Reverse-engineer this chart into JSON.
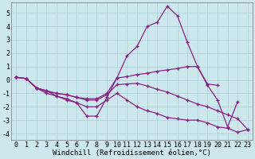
{
  "background_color": "#cde8ec",
  "grid_color": "#aad0d8",
  "line_color": "#882288",
  "marker": "+",
  "xlabel": "Windchill (Refroidissement éolien,°C)",
  "xlabel_fontsize": 6.5,
  "tick_fontsize": 6,
  "xlim": [
    -0.5,
    23.5
  ],
  "ylim": [
    -4.5,
    5.8
  ],
  "yticks": [
    -4,
    -3,
    -2,
    -1,
    0,
    1,
    2,
    3,
    4,
    5
  ],
  "xticks": [
    0,
    1,
    2,
    3,
    4,
    5,
    6,
    7,
    8,
    9,
    10,
    11,
    12,
    13,
    14,
    15,
    16,
    17,
    18,
    19,
    20,
    21,
    22,
    23
  ],
  "series": [
    [
      0.2,
      0.1,
      -0.6,
      -0.8,
      -1.2,
      -1.4,
      -1.7,
      -2.7,
      -2.7,
      -1.3,
      0.15,
      1.8,
      2.5,
      4.0,
      4.3,
      5.5,
      4.8,
      2.8,
      1.0,
      -0.4,
      -1.5,
      -3.5,
      -1.6,
      null
    ],
    [
      0.2,
      0.1,
      -0.6,
      -0.8,
      -1.0,
      -1.1,
      -1.3,
      -1.4,
      -1.4,
      -1.0,
      0.15,
      0.25,
      0.4,
      0.5,
      0.65,
      0.75,
      0.85,
      1.0,
      1.0,
      -0.3,
      -0.4,
      null,
      null,
      null
    ],
    [
      0.2,
      0.1,
      -0.6,
      -0.85,
      -1.0,
      -1.1,
      -1.3,
      -1.5,
      -1.5,
      -1.1,
      -0.35,
      -0.3,
      -0.25,
      -0.45,
      -0.7,
      -0.9,
      -1.2,
      -1.5,
      -1.8,
      -2.0,
      -2.3,
      -2.6,
      -2.9,
      -3.7
    ],
    [
      0.2,
      0.1,
      -0.6,
      -1.0,
      -1.2,
      -1.5,
      -1.7,
      -2.0,
      -2.0,
      -1.5,
      -1.0,
      -1.5,
      -2.0,
      -2.3,
      -2.5,
      -2.8,
      -2.9,
      -3.0,
      -3.0,
      -3.2,
      -3.5,
      -3.6,
      -3.9,
      -3.7
    ]
  ]
}
